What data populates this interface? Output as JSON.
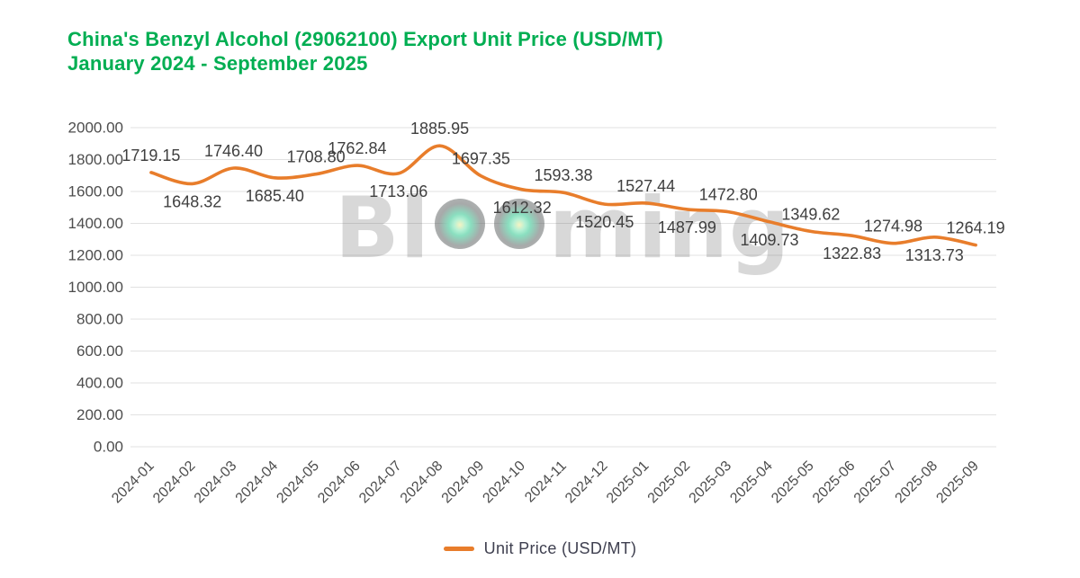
{
  "header": {
    "title_line1": "China's Benzyl Alcohol (29062100) Export Unit Price (USD/MT)",
    "title_line2": "January 2024 - September 2025"
  },
  "watermark": {
    "text": "Blooming",
    "left": "Bl",
    "right": "ming"
  },
  "chart_data": {
    "type": "line",
    "title": "China's Benzyl Alcohol (29062100) Export Unit Price (USD/MT) January 2024 - September 2025",
    "legend": "Unit Price (USD/MT)",
    "legend_position": "bottom",
    "grid": true,
    "smooth_line": true,
    "xlabel": "",
    "ylabel": "",
    "ylim": [
      0,
      2000
    ],
    "ytick_step": 200,
    "ytick_decimals": 2,
    "categories": [
      "2024-01",
      "2024-02",
      "2024-03",
      "2024-04",
      "2024-05",
      "2024-06",
      "2024-07",
      "2024-08",
      "2024-09",
      "2024-10",
      "2024-11",
      "2024-12",
      "2025-01",
      "2025-02",
      "2025-03",
      "2025-04",
      "2025-05",
      "2025-06",
      "2025-07",
      "2025-08",
      "2025-09"
    ],
    "series": [
      {
        "name": "Unit Price (USD/MT)",
        "values": [
          1719.15,
          1648.32,
          1746.4,
          1685.4,
          1708.8,
          1762.84,
          1713.06,
          1885.95,
          1697.35,
          1612.32,
          1593.38,
          1520.45,
          1527.44,
          1487.99,
          1472.8,
          1409.73,
          1349.62,
          1322.83,
          1274.98,
          1313.73,
          1264.19
        ]
      }
    ],
    "label_positions": [
      "above",
      "below",
      "above",
      "below",
      "above",
      "above",
      "below",
      "above",
      "above",
      "below",
      "above",
      "below",
      "above",
      "below",
      "above",
      "below",
      "above",
      "below",
      "above",
      "below",
      "above"
    ],
    "colors": {
      "line": "#E87D2B",
      "title": "#00AE52",
      "data_label": "#3F3F3F",
      "axis_label": "#4D4D4D",
      "grid": "#E1E1E1",
      "legend_text": "#3F4050"
    }
  }
}
